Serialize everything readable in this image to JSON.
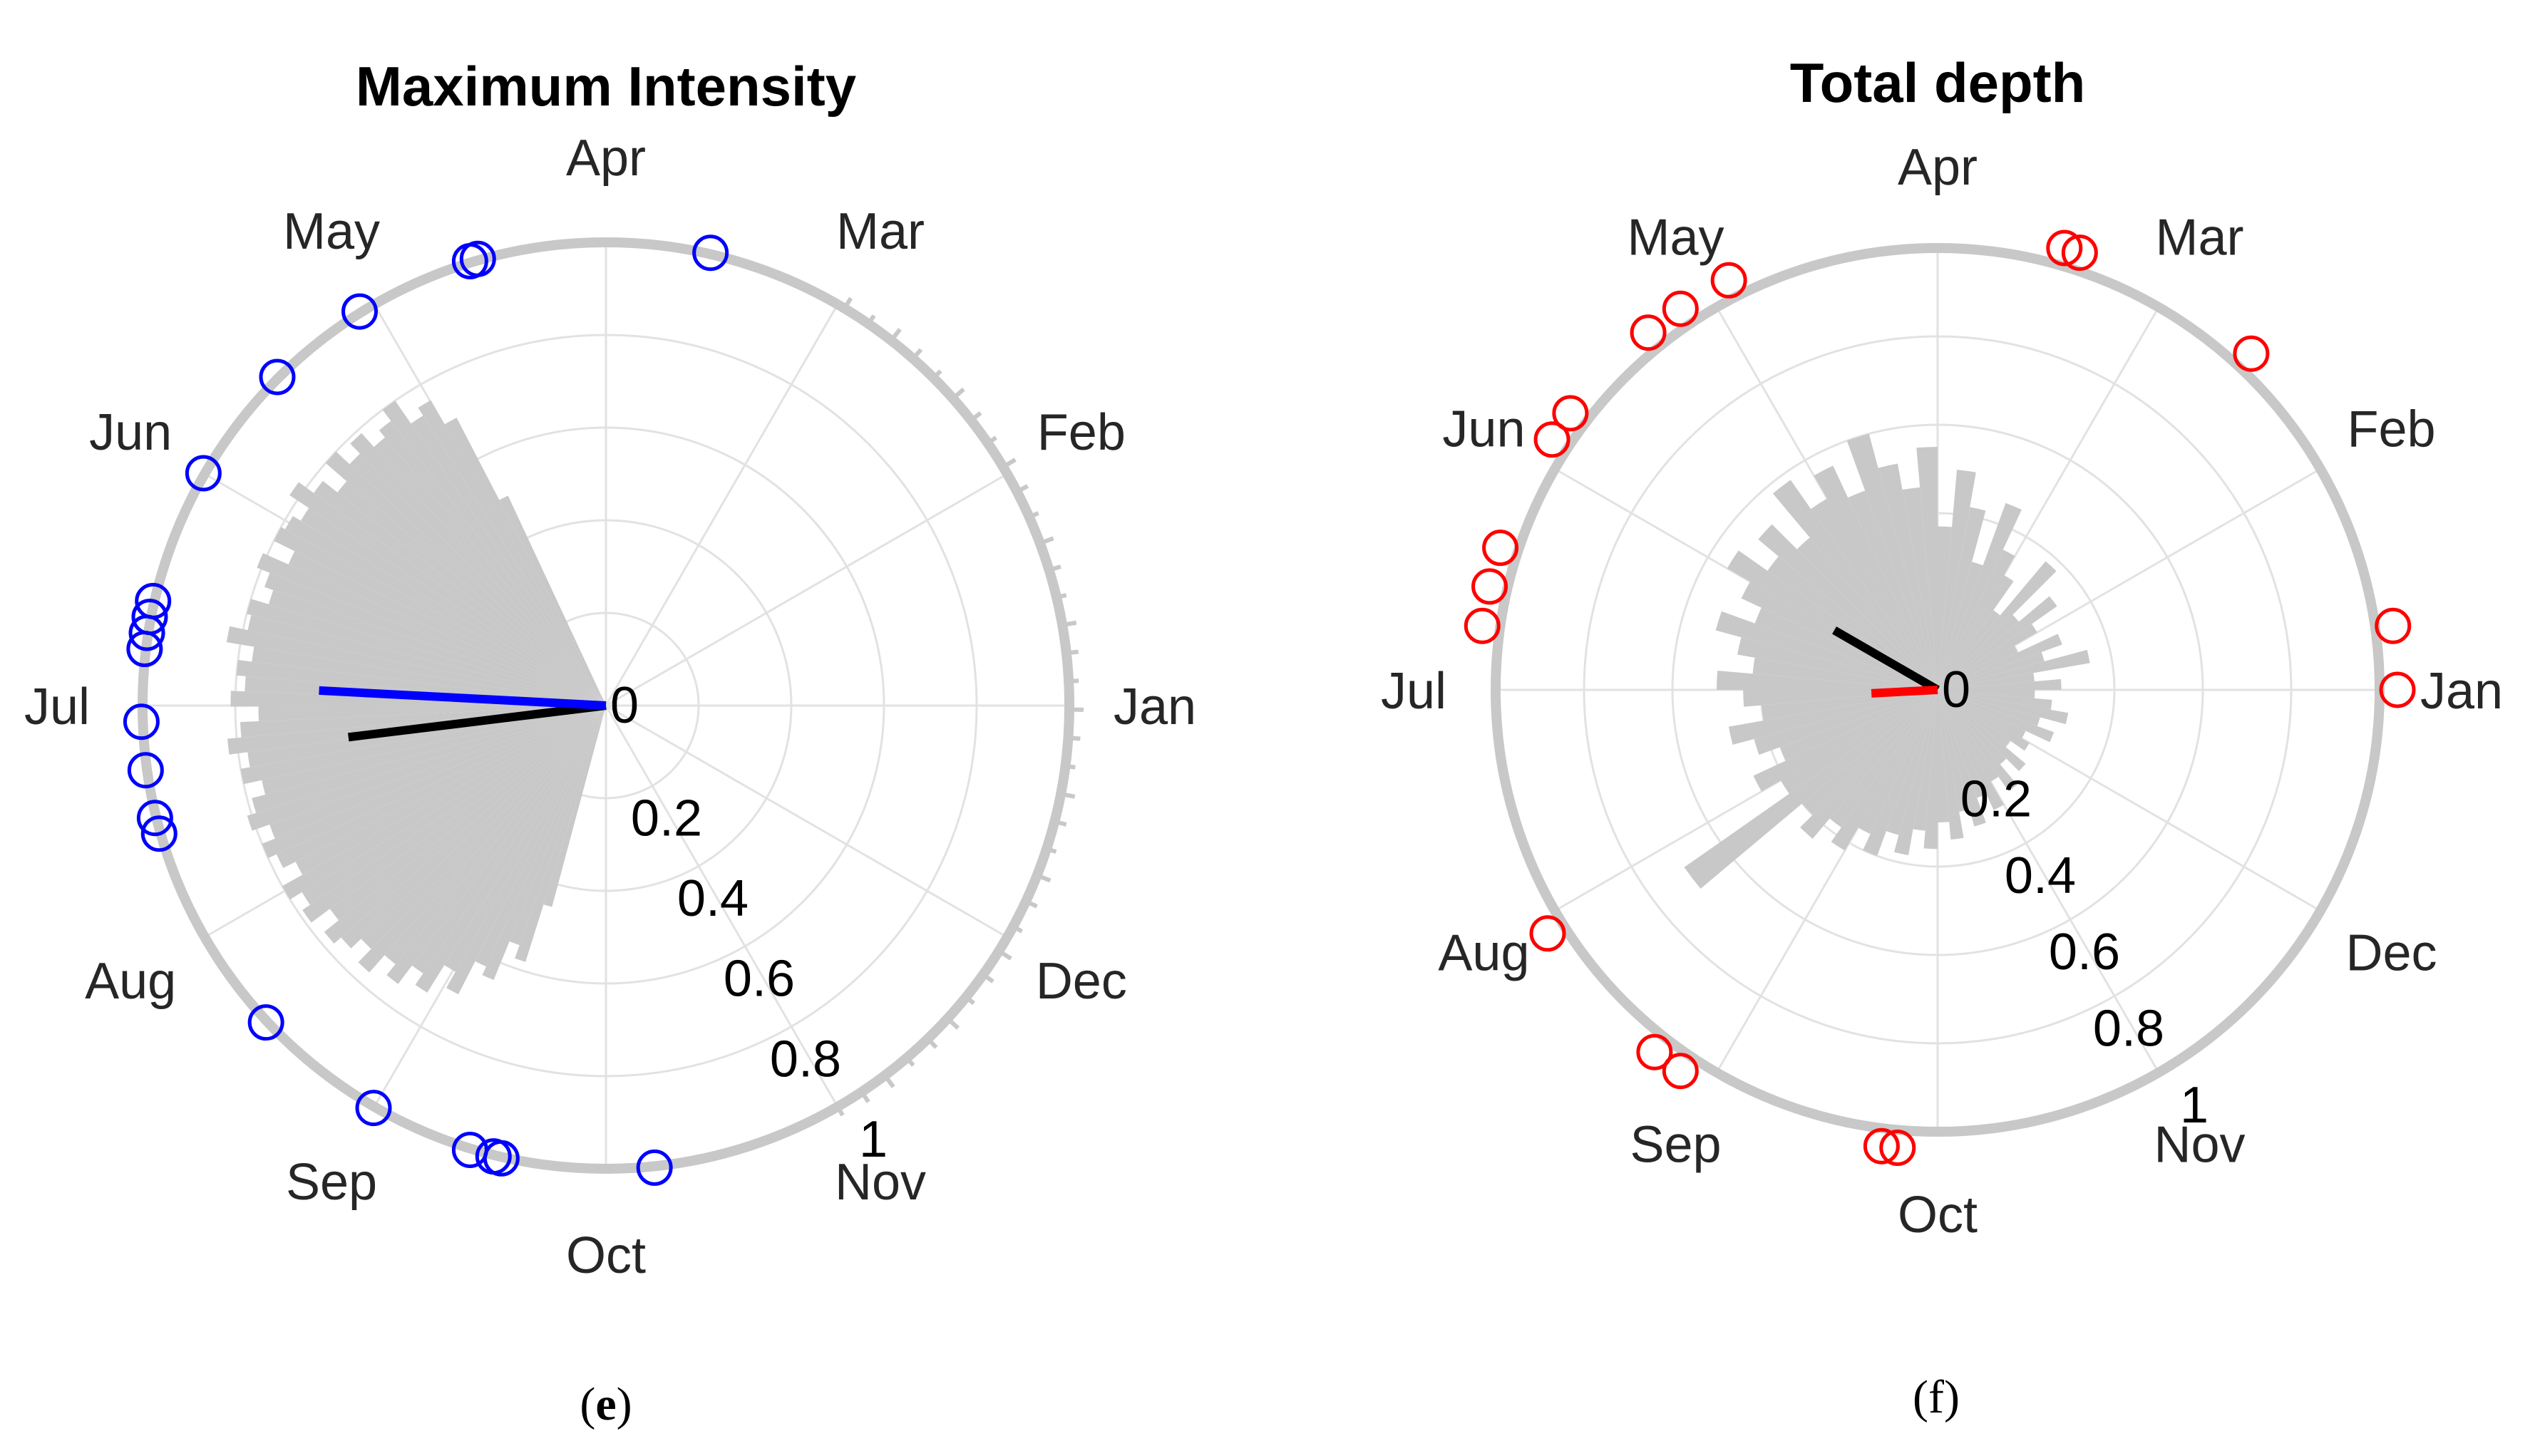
{
  "chart_data": [
    {
      "type": "polar",
      "title": "Maximum Intensity",
      "caption_letter": "e",
      "months": [
        "Jan",
        "Feb",
        "Mar",
        "Apr",
        "May",
        "Jun",
        "Jul",
        "Aug",
        "Sep",
        "Oct",
        "Nov",
        "Dec"
      ],
      "radial_ticks": [
        "0",
        "0.2",
        "0.4",
        "0.6",
        "0.8",
        "1"
      ],
      "rlim": [
        0,
        1
      ],
      "grid": true,
      "colors": {
        "points": "#0000ff",
        "mean_vector": "#0000ff",
        "hist": "#c8c8c8",
        "ring": "#c8c8c8",
        "second_vector": "#000000"
      },
      "mean_vector": {
        "angle_deg": 177,
        "length": 0.62
      },
      "second_vector": {
        "angle_deg": 187,
        "length": 0.56
      },
      "histogram": {
        "start_deg": 115,
        "end_deg": 255,
        "radii": [
          0.5,
          0.7,
          0.76,
          0.74,
          0.8,
          0.77,
          0.75,
          0.79,
          0.76,
          0.8,
          0.74,
          0.78,
          0.82,
          0.77,
          0.79,
          0.8,
          0.75,
          0.81,
          0.78,
          0.76,
          0.8,
          0.79,
          0.83,
          0.77,
          0.8,
          0.78,
          0.81,
          0.75,
          0.79,
          0.82,
          0.78,
          0.8,
          0.76,
          0.79,
          0.81,
          0.77,
          0.8,
          0.78,
          0.75,
          0.8,
          0.77,
          0.79,
          0.74,
          0.78,
          0.76,
          0.73,
          0.77,
          0.72,
          0.75,
          0.7,
          0.73,
          0.66,
          0.7,
          0.62,
          0.64,
          0.55,
          0.58,
          0.45
        ]
      },
      "ring_outer_marks": {
        "start_deg": 300,
        "end_deg": 60
      },
      "points_deg": [
        77,
        106,
        107,
        122,
        135,
        150,
        167,
        169,
        171,
        173,
        182,
        188,
        194,
        196,
        223,
        240,
        253,
        256,
        257,
        276
      ]
    },
    {
      "type": "polar",
      "title": "Total depth",
      "caption_letter": "f",
      "months": [
        "Jan",
        "Feb",
        "Mar",
        "Apr",
        "May",
        "Jun",
        "Jul",
        "Aug",
        "Sep",
        "Oct",
        "Nov",
        "Dec"
      ],
      "radial_ticks": [
        "0",
        "0.2",
        "0.4",
        "0.6",
        "0.8",
        "1"
      ],
      "rlim": [
        0,
        1
      ],
      "grid": true,
      "colors": {
        "points": "#ff0000",
        "mean_vector": "#ff0000",
        "hist": "#c8c8c8",
        "ring": "#c8c8c8",
        "second_vector": "#000000"
      },
      "mean_vector": {
        "angle_deg": 183,
        "length": 0.15
      },
      "second_vector": {
        "angle_deg": 150,
        "length": 0.27
      },
      "histogram": {
        "start_deg": 0,
        "end_deg": 360,
        "radii": [
          0.28,
          0.22,
          0.35,
          0.25,
          0.3,
          0.2,
          0.26,
          0.33,
          0.24,
          0.38,
          0.22,
          0.3,
          0.35,
          0.45,
          0.3,
          0.42,
          0.5,
          0.37,
          0.55,
          0.46,
          0.52,
          0.6,
          0.48,
          0.56,
          0.5,
          0.58,
          0.45,
          0.53,
          0.47,
          0.55,
          0.49,
          0.44,
          0.52,
          0.46,
          0.42,
          0.5,
          0.44,
          0.4,
          0.48,
          0.43,
          0.38,
          0.46,
          0.41,
          0.7,
          0.4,
          0.44,
          0.38,
          0.42,
          0.36,
          0.4,
          0.34,
          0.38,
          0.32,
          0.36,
          0.3,
          0.34,
          0.28,
          0.32,
          0.26,
          0.3,
          0.24,
          0.28,
          0.22,
          0.26,
          0.2,
          0.24,
          0.22,
          0.28,
          0.24,
          0.3,
          0.26,
          0.22
        ]
      },
      "points_deg": [
        0,
        8,
        47,
        72,
        74,
        117,
        124,
        129,
        143,
        147,
        162,
        167,
        172,
        212,
        232,
        236,
        263,
        265
      ]
    }
  ],
  "captions": [
    {
      "open": "(",
      "letter": "e",
      "close": ")"
    },
    {
      "open": "(",
      "letter": "f",
      "close": ")"
    }
  ]
}
